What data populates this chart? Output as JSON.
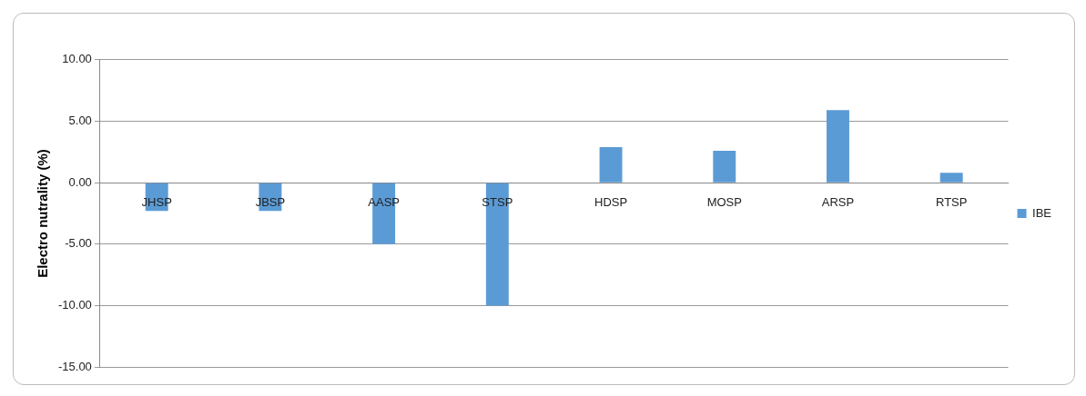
{
  "chart_data": {
    "type": "bar",
    "ylabel": "Electro nutrality (%)",
    "categories": [
      "JHSP",
      "JBSP",
      "AASP",
      "STSP",
      "HDSP",
      "MOSP",
      "ARSP",
      "RTSP"
    ],
    "series": [
      {
        "name": "IBE",
        "color": "#5b9bd5",
        "values": [
          -2.3,
          -2.3,
          -5.0,
          -10.0,
          2.9,
          2.6,
          5.9,
          0.8
        ]
      }
    ],
    "ylim": [
      -15,
      10
    ],
    "yticks": [
      {
        "value": -15,
        "label": "-15.00"
      },
      {
        "value": -10,
        "label": "-10.00"
      },
      {
        "value": -5,
        "label": "-5.00"
      },
      {
        "value": 0,
        "label": "0.00"
      },
      {
        "value": 5,
        "label": "5.00"
      },
      {
        "value": 10,
        "label": "10.00"
      }
    ],
    "grid": "y",
    "legend": "right"
  }
}
